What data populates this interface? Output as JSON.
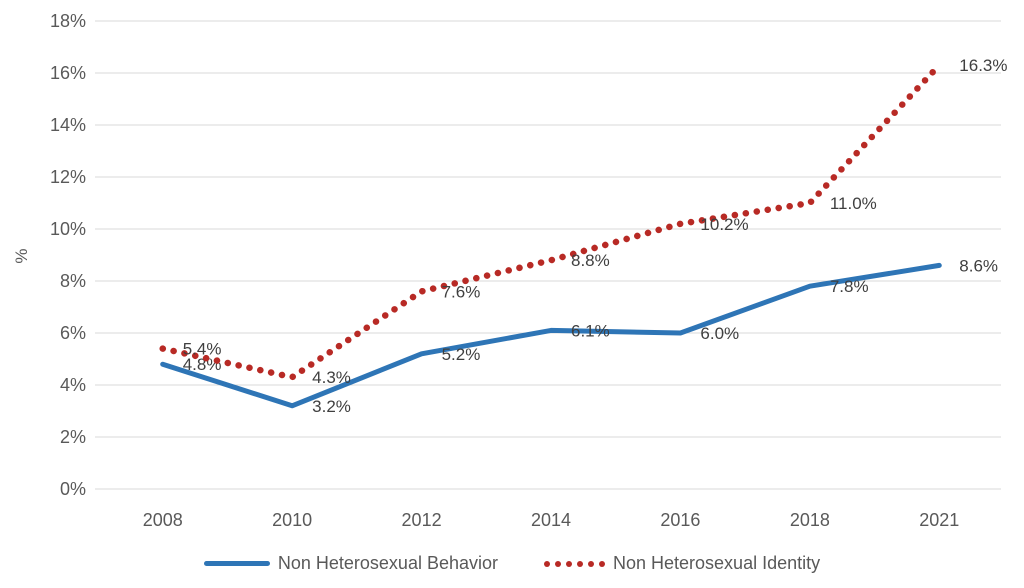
{
  "chart_data": {
    "type": "line",
    "title": "",
    "xlabel": "",
    "ylabel": "%",
    "categories": [
      "2008",
      "2010",
      "2012",
      "2014",
      "2016",
      "2018",
      "2021"
    ],
    "y_ticks": [
      "0%",
      "2%",
      "4%",
      "6%",
      "8%",
      "10%",
      "12%",
      "14%",
      "16%",
      "18%"
    ],
    "ylim": [
      0,
      18
    ],
    "grid": "horizontal",
    "legend_position": "bottom",
    "grid_color": "#D9D9D9",
    "axis_color": "#595959",
    "label_color": "#3F3F3F",
    "series": [
      {
        "name": "Non Heterosexual Behavior",
        "style": "solid",
        "color": "#2E75B6",
        "values": [
          4.8,
          3.2,
          5.2,
          6.1,
          6.0,
          7.8,
          8.6
        ],
        "data_labels": [
          "4.8%",
          "3.2%",
          "5.2%",
          "6.1%",
          "6.0%",
          "7.8%",
          "8.6%"
        ]
      },
      {
        "name": "Non Heterosexual Identity",
        "style": "dotted",
        "color": "#B82A25",
        "values": [
          5.4,
          4.3,
          7.6,
          8.8,
          10.2,
          11.0,
          16.3
        ],
        "data_labels": [
          "5.4%",
          "4.3%",
          "7.6%",
          "8.8%",
          "10.2%",
          "11.0%",
          "16.3%"
        ]
      }
    ]
  }
}
